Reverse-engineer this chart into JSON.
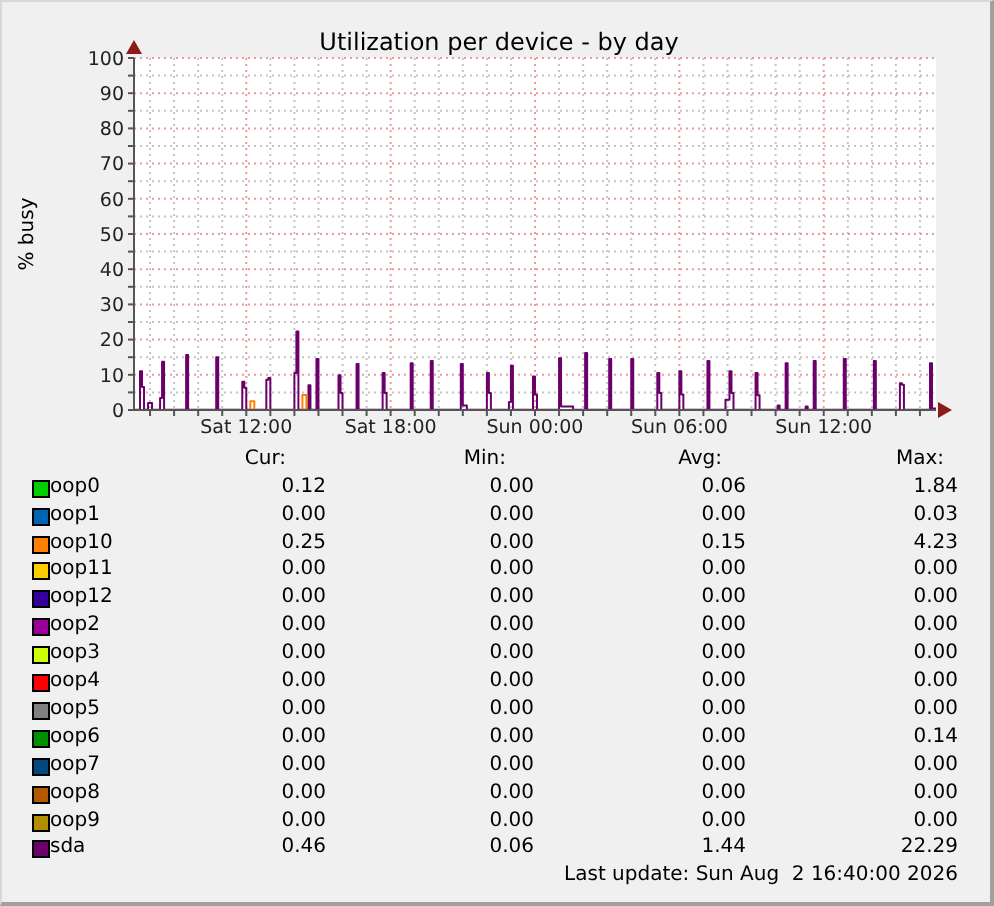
{
  "chart_data": {
    "type": "step",
    "title": "Utilization per device - by day",
    "ylabel": "% busy",
    "xlim": [
      "2026-08-01T07:20",
      "2026-08-02T16:40"
    ],
    "xticks": [
      {
        "value": "2026-08-01T08:00",
        "label": null
      },
      {
        "value": "2026-08-01T09:00",
        "label": null
      },
      {
        "value": "2026-08-01T10:00",
        "label": null
      },
      {
        "value": "2026-08-01T11:00",
        "label": null
      },
      {
        "value": "2026-08-01T12:00",
        "label": "Sat 12:00"
      },
      {
        "value": "2026-08-01T13:00",
        "label": null
      },
      {
        "value": "2026-08-01T14:00",
        "label": null
      },
      {
        "value": "2026-08-01T15:00",
        "label": null
      },
      {
        "value": "2026-08-01T16:00",
        "label": null
      },
      {
        "value": "2026-08-01T17:00",
        "label": null
      },
      {
        "value": "2026-08-01T18:00",
        "label": "Sat 18:00"
      },
      {
        "value": "2026-08-01T19:00",
        "label": null
      },
      {
        "value": "2026-08-01T20:00",
        "label": null
      },
      {
        "value": "2026-08-01T21:00",
        "label": null
      },
      {
        "value": "2026-08-01T22:00",
        "label": null
      },
      {
        "value": "2026-08-01T23:00",
        "label": null
      },
      {
        "value": "2026-08-02T00:00",
        "label": "Sun 00:00"
      },
      {
        "value": "2026-08-02T01:00",
        "label": null
      },
      {
        "value": "2026-08-02T02:00",
        "label": null
      },
      {
        "value": "2026-08-02T03:00",
        "label": null
      },
      {
        "value": "2026-08-02T04:00",
        "label": null
      },
      {
        "value": "2026-08-02T05:00",
        "label": null
      },
      {
        "value": "2026-08-02T06:00",
        "label": "Sun 06:00"
      },
      {
        "value": "2026-08-02T07:00",
        "label": null
      },
      {
        "value": "2026-08-02T08:00",
        "label": null
      },
      {
        "value": "2026-08-02T09:00",
        "label": null
      },
      {
        "value": "2026-08-02T10:00",
        "label": null
      },
      {
        "value": "2026-08-02T11:00",
        "label": null
      },
      {
        "value": "2026-08-02T12:00",
        "label": "Sun 12:00"
      },
      {
        "value": "2026-08-02T13:00",
        "label": null
      },
      {
        "value": "2026-08-02T14:00",
        "label": null
      },
      {
        "value": "2026-08-02T15:00",
        "label": null
      },
      {
        "value": "2026-08-02T16:00",
        "label": null
      }
    ],
    "ylim": [
      0,
      100
    ],
    "yticks": [
      0,
      {
        "value": 5,
        "label": null
      },
      10,
      {
        "value": 15,
        "label": null
      },
      20,
      {
        "value": 25,
        "label": null
      },
      30,
      {
        "value": 35,
        "label": null
      },
      40,
      {
        "value": 45,
        "label": null
      },
      50,
      {
        "value": 55,
        "label": null
      },
      60,
      {
        "value": 65,
        "label": null
      },
      70,
      {
        "value": 75,
        "label": null
      },
      80,
      {
        "value": 85,
        "label": null
      },
      90,
      {
        "value": 95,
        "label": null
      },
      100
    ],
    "grid": true,
    "legend": "bottom",
    "series": [
      {
        "name": "oop0",
        "color": "#00cc00"
      },
      {
        "name": "oop1",
        "color": "#0066b3"
      },
      {
        "name": "oop10",
        "color": "#ff8000",
        "x": [
          "2026-08-01T12:05",
          "2026-08-01T12:10",
          "2026-08-01T12:20",
          "2026-08-01T12:25",
          "2026-08-01T14:15",
          "2026-08-01T14:20",
          "2026-08-01T14:30"
        ],
        "values": [
          0,
          2.5,
          0,
          null,
          0,
          4.23,
          0
        ]
      },
      {
        "name": "oop11",
        "color": "#ffcc00"
      },
      {
        "name": "oop12",
        "color": "#330099"
      },
      {
        "name": "oop2",
        "color": "#990099"
      },
      {
        "name": "oop3",
        "color": "#ccff00"
      },
      {
        "name": "oop4",
        "color": "#ff0000"
      },
      {
        "name": "oop5",
        "color": "#808080"
      },
      {
        "name": "oop6",
        "color": "#008f00"
      },
      {
        "name": "oop7",
        "color": "#00487d"
      },
      {
        "name": "oop8",
        "color": "#b35a00"
      },
      {
        "name": "oop9",
        "color": "#b38f00"
      },
      {
        "name": "sda",
        "color": "#6b006b",
        "x": [
          "2026-08-01T07:20",
          "2026-08-01T07:35",
          "2026-08-01T07:40",
          "2026-08-01T07:45",
          "2026-08-01T07:55",
          "2026-08-01T08:05",
          "2026-08-01T08:25",
          "2026-08-01T08:30",
          "2026-08-01T08:35",
          "2026-08-01T09:30",
          "2026-08-01T09:35",
          "2026-08-01T10:45",
          "2026-08-01T10:50",
          "2026-08-01T11:50",
          "2026-08-01T11:55",
          "2026-08-01T12:00",
          "2026-08-01T12:50",
          "2026-08-01T12:55",
          "2026-08-01T13:00",
          "2026-08-01T14:00",
          "2026-08-01T14:05",
          "2026-08-01T14:10",
          "2026-08-01T14:35",
          "2026-08-01T14:40",
          "2026-08-01T14:55",
          "2026-08-01T15:00",
          "2026-08-01T15:50",
          "2026-08-01T15:55",
          "2026-08-01T16:00",
          "2026-08-01T16:35",
          "2026-08-01T16:40",
          "2026-08-01T17:40",
          "2026-08-01T17:45",
          "2026-08-01T17:50",
          "2026-08-01T18:50",
          "2026-08-01T18:55",
          "2026-08-01T19:40",
          "2026-08-01T19:45",
          "2026-08-01T20:55",
          "2026-08-01T21:00",
          "2026-08-01T21:10",
          "2026-08-01T22:00",
          "2026-08-01T22:05",
          "2026-08-01T22:10",
          "2026-08-01T22:55",
          "2026-08-01T23:00",
          "2026-08-01T23:05",
          "2026-08-01T23:55",
          "2026-08-02T00:00",
          "2026-08-02T00:05",
          "2026-08-02T01:00",
          "2026-08-02T01:05",
          "2026-08-02T01:35",
          "2026-08-02T02:05",
          "2026-08-02T02:10",
          "2026-08-02T03:05",
          "2026-08-02T03:10",
          "2026-08-02T04:00",
          "2026-08-02T04:05",
          "2026-08-02T05:05",
          "2026-08-02T05:10",
          "2026-08-02T05:15",
          "2026-08-02T06:00",
          "2026-08-02T06:05",
          "2026-08-02T06:10",
          "2026-08-02T07:10",
          "2026-08-02T07:15",
          "2026-08-02T07:55",
          "2026-08-02T08:05",
          "2026-08-02T08:10",
          "2026-08-02T08:15",
          "2026-08-02T09:10",
          "2026-08-02T09:15",
          "2026-08-02T09:20",
          "2026-08-02T10:05",
          "2026-08-02T10:10",
          "2026-08-02T10:25",
          "2026-08-02T10:30",
          "2026-08-02T11:15",
          "2026-08-02T11:20",
          "2026-08-02T11:35",
          "2026-08-02T11:40",
          "2026-08-02T12:50",
          "2026-08-02T12:55",
          "2026-08-02T14:05",
          "2026-08-02T14:10",
          "2026-08-02T15:10",
          "2026-08-02T15:15",
          "2026-08-02T15:20",
          "2026-08-02T16:25",
          "2026-08-02T16:30",
          "2026-08-02T16:40"
        ],
        "values": [
          0.1,
          11.0,
          6.5,
          0.1,
          2.0,
          0.1,
          3.4,
          13.7,
          0.1,
          15.6,
          0.1,
          15.0,
          0.1,
          8.0,
          6.3,
          0.1,
          8.6,
          9.1,
          0.1,
          10.5,
          22.29,
          0.1,
          7.0,
          0.1,
          14.5,
          0.1,
          9.9,
          4.8,
          0.1,
          13.1,
          0.1,
          10.5,
          4.8,
          0.1,
          13.3,
          0.1,
          13.9,
          0.1,
          13.1,
          1.3,
          0.1,
          10.5,
          4.8,
          0.1,
          2.3,
          12.6,
          0.1,
          9.5,
          4.4,
          0.1,
          14.7,
          1.0,
          0.1,
          16.2,
          0.1,
          14.5,
          0.1,
          14.5,
          0.1,
          10.5,
          4.8,
          0.1,
          11.0,
          4.4,
          0.1,
          13.9,
          0.1,
          2.9,
          11.0,
          4.8,
          0.1,
          10.5,
          4.2,
          0.1,
          1.3,
          0.1,
          13.3,
          0.1,
          1.0,
          0.1,
          13.9,
          0.1,
          14.5,
          0.1,
          13.9,
          0.1,
          7.6,
          7.2,
          0.1,
          13.3,
          0.46,
          0.46
        ]
      }
    ],
    "annotations": [
      "Cur:",
      "Min:",
      "Avg:",
      "Max:",
      "0.12",
      "0.00",
      "0.06",
      "1.84",
      "0.00",
      "0.00",
      "0.00",
      "0.03",
      "0.25",
      "0.00",
      "0.15",
      "4.23",
      "0.00",
      "0.00",
      "0.00",
      "0.00",
      "0.00",
      "0.00",
      "0.00",
      "0.00",
      "0.00",
      "0.00",
      "0.00",
      "0.00",
      "0.00",
      "0.00",
      "0.00",
      "0.00",
      "0.00",
      "0.00",
      "0.00",
      "0.00",
      "0.00",
      "0.00",
      "0.00",
      "0.00",
      "0.00",
      "0.00",
      "0.00",
      "0.14",
      "0.00",
      "0.00",
      "0.00",
      "0.00",
      "0.00",
      "0.00",
      "0.00",
      "0.00",
      "0.00",
      "0.00",
      "0.00",
      "0.00",
      "0.46",
      "0.06",
      "1.44",
      "22.29",
      "Last update: Sun Aug  2 16:40:00 2026"
    ]
  }
}
